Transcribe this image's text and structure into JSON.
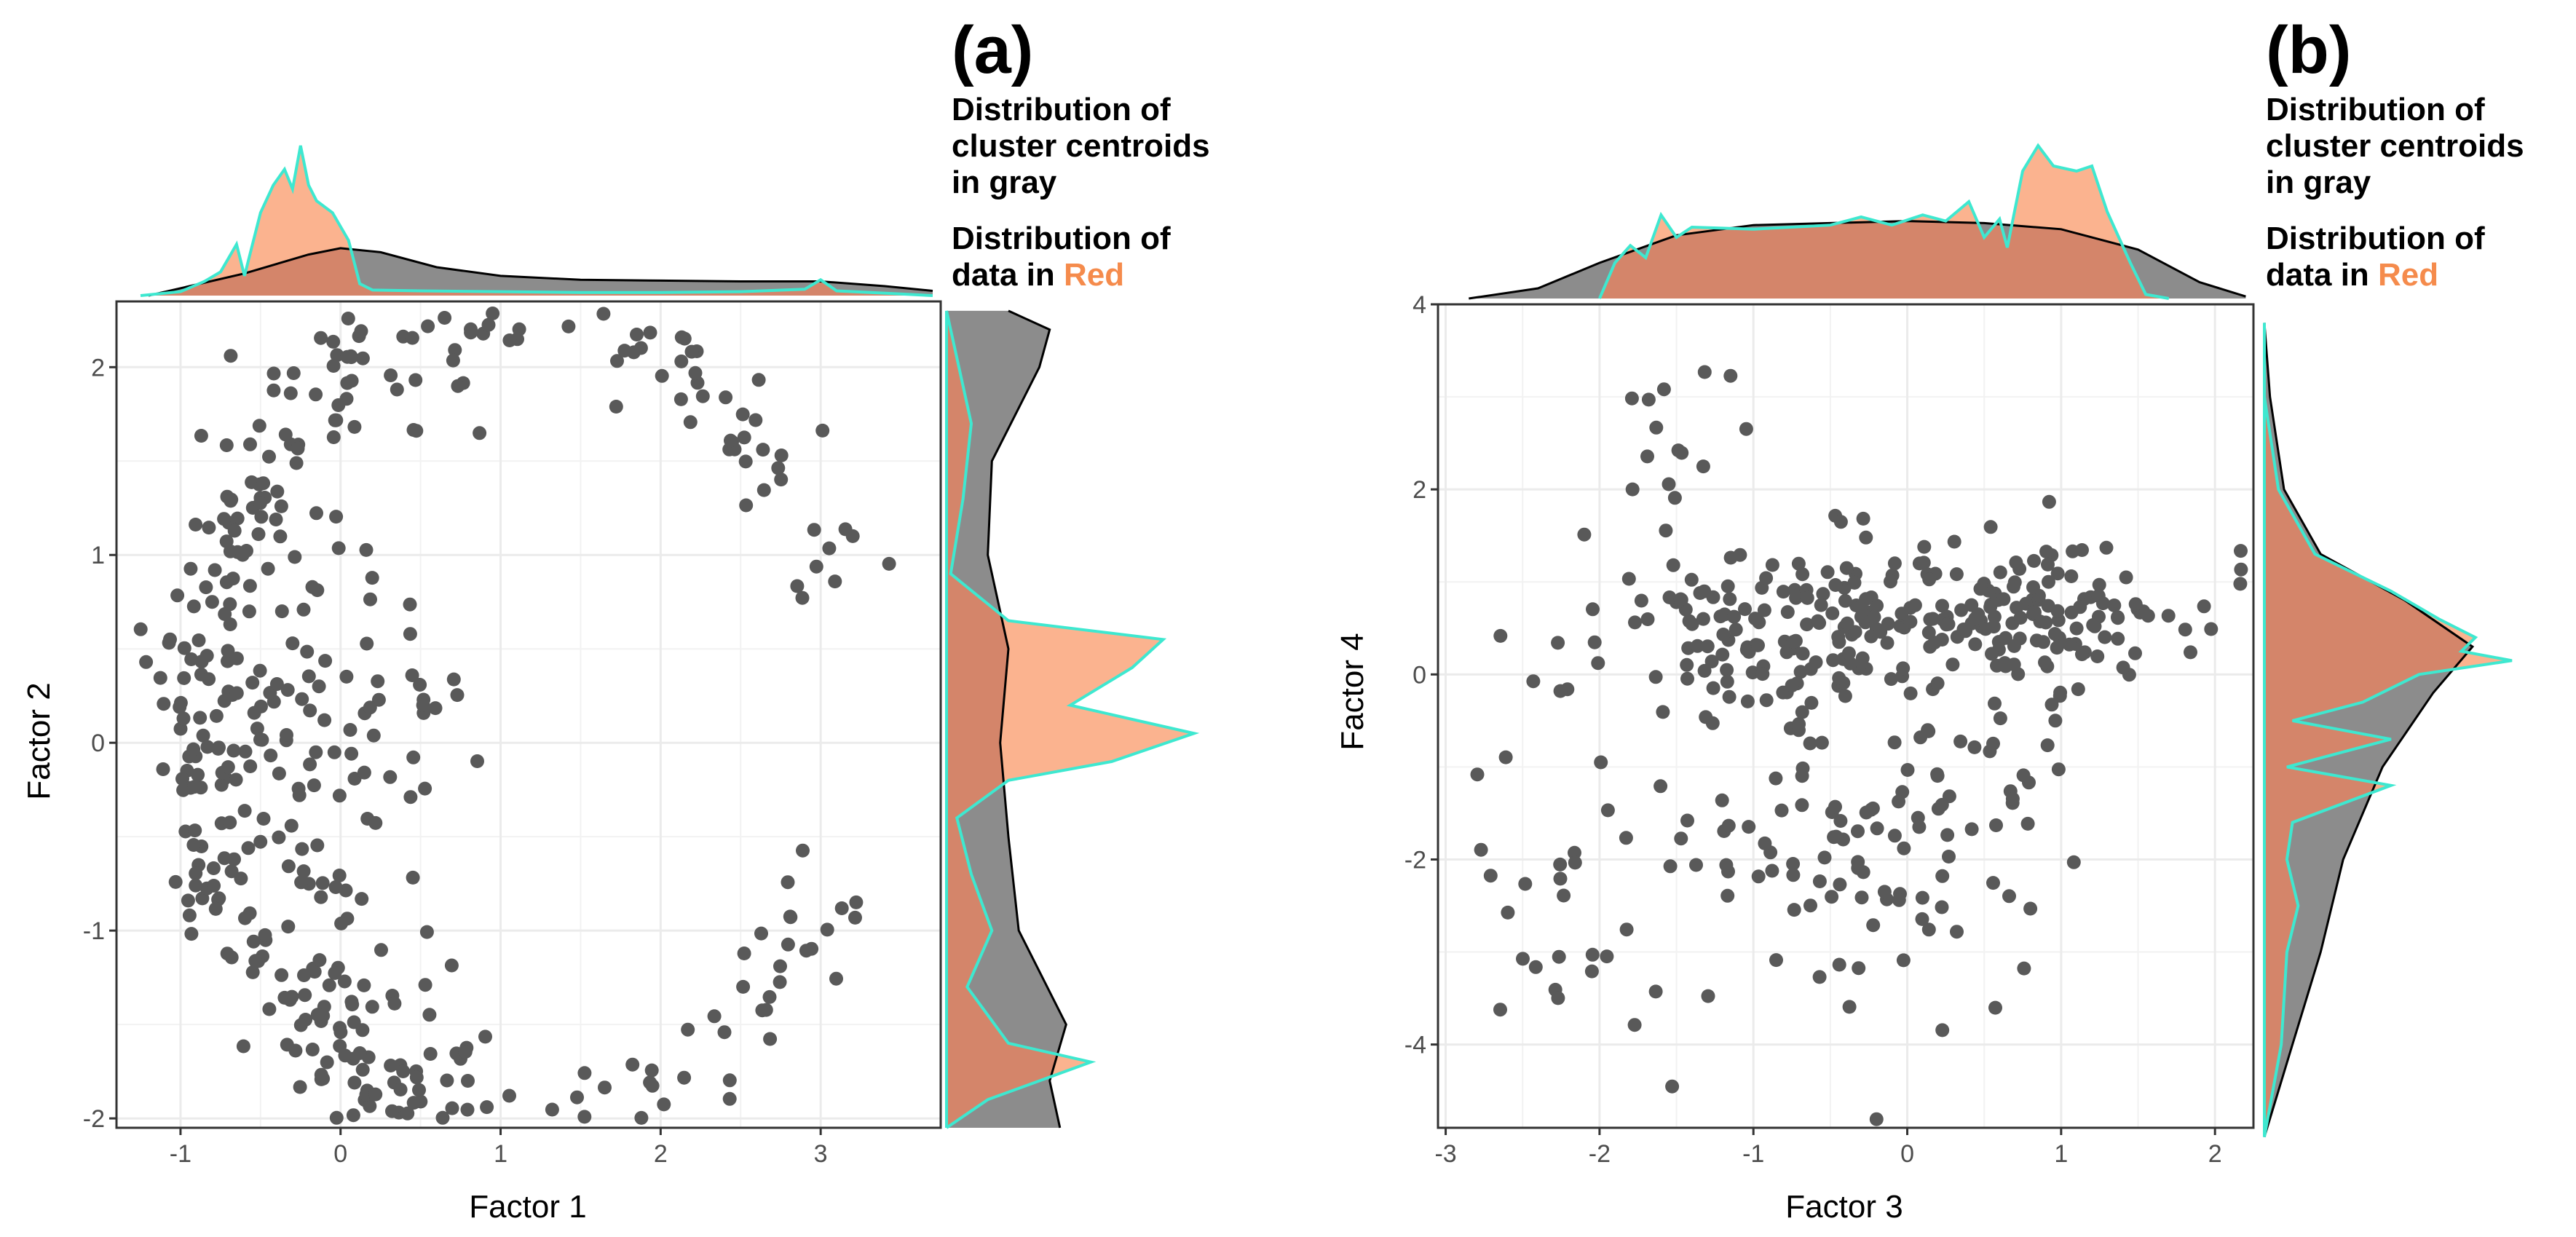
{
  "colors": {
    "point": "#595959",
    "centroid_density_fill": "#8c8c8c",
    "centroid_density_line": "#000000",
    "data_density_fill": "#fbb38f",
    "data_density_line": "#3ee8d0",
    "overlap_fill": "#d4856a",
    "overlap_line": "#6e2a12",
    "highlight": "#f58b4c",
    "grid": "#ebebeb"
  },
  "chart_data": [
    {
      "type": "scatter",
      "panel_label": "(a)",
      "legend": {
        "line1": "Distribution of",
        "line2": "cluster centroids",
        "line3": "in gray",
        "line4": "Distribution of",
        "line5_prefix": "data in ",
        "line5_highlight": "Red"
      },
      "xlabel": "Factor 1",
      "ylabel": "Factor 2",
      "xlim": [
        -1.4,
        3.75
      ],
      "ylim": [
        -2.05,
        2.35
      ],
      "xticks": [
        -1,
        0,
        1,
        2,
        3
      ],
      "yticks": [
        -2,
        -1,
        0,
        1,
        2
      ],
      "xtick_labels": [
        "-1",
        "0",
        "1",
        "2",
        "3"
      ],
      "ytick_labels": [
        "-2",
        "-1",
        "0",
        "1",
        "2"
      ],
      "grid": true,
      "point_generator": {
        "seed": 11,
        "clusters": [
          {
            "shape": "arc",
            "cx": 1.15,
            "cy": 0.1,
            "r": 2.05,
            "a0": 18,
            "a1": 342,
            "sd": 0.15,
            "n": 230
          },
          {
            "shape": "arc",
            "cx": 0.95,
            "cy": 0.3,
            "r": 1.85,
            "a0": 95,
            "a1": 265,
            "sd": 0.22,
            "n": 110
          },
          {
            "shape": "blob",
            "cx": -0.2,
            "cy": 0.0,
            "sx": 0.45,
            "sy": 0.55,
            "n": 110
          },
          {
            "shape": "arc",
            "cx": 1.2,
            "cy": 0.0,
            "r": 2.05,
            "a0": 230,
            "a1": 300,
            "sd": 0.12,
            "n": 60
          }
        ]
      },
      "marginal_top": {
        "domain": [
          -1.25,
          3.7
        ],
        "centroids": [
          [
            -1.2,
            0.0
          ],
          [
            -0.6,
            0.28
          ],
          [
            -0.2,
            0.52
          ],
          [
            0.0,
            0.6
          ],
          [
            0.25,
            0.55
          ],
          [
            0.6,
            0.36
          ],
          [
            1.0,
            0.25
          ],
          [
            1.5,
            0.2
          ],
          [
            2.0,
            0.19
          ],
          [
            2.5,
            0.18
          ],
          [
            3.0,
            0.18
          ],
          [
            3.4,
            0.12
          ],
          [
            3.7,
            0.06
          ]
        ],
        "data": [
          [
            -1.25,
            0.0
          ],
          [
            -1.0,
            0.05
          ],
          [
            -0.85,
            0.18
          ],
          [
            -0.75,
            0.3
          ],
          [
            -0.65,
            0.65
          ],
          [
            -0.6,
            0.25
          ],
          [
            -0.5,
            1.05
          ],
          [
            -0.42,
            1.4
          ],
          [
            -0.35,
            1.6
          ],
          [
            -0.3,
            1.35
          ],
          [
            -0.25,
            1.9
          ],
          [
            -0.2,
            1.4
          ],
          [
            -0.15,
            1.2
          ],
          [
            -0.05,
            1.05
          ],
          [
            0.05,
            0.7
          ],
          [
            0.12,
            0.15
          ],
          [
            0.2,
            0.07
          ],
          [
            0.5,
            0.06
          ],
          [
            1.0,
            0.05
          ],
          [
            1.5,
            0.04
          ],
          [
            2.0,
            0.04
          ],
          [
            2.5,
            0.05
          ],
          [
            2.9,
            0.08
          ],
          [
            3.0,
            0.2
          ],
          [
            3.1,
            0.06
          ],
          [
            3.5,
            0.02
          ],
          [
            3.7,
            0.0
          ]
        ]
      },
      "marginal_right": {
        "domain": [
          -2.05,
          2.3
        ],
        "centroids": [
          [
            -2.05,
            0.55
          ],
          [
            -1.8,
            0.5
          ],
          [
            -1.5,
            0.58
          ],
          [
            -1.0,
            0.35
          ],
          [
            -0.5,
            0.3
          ],
          [
            0.0,
            0.26
          ],
          [
            0.5,
            0.3
          ],
          [
            1.0,
            0.2
          ],
          [
            1.5,
            0.22
          ],
          [
            2.0,
            0.45
          ],
          [
            2.2,
            0.5
          ],
          [
            2.3,
            0.3
          ]
        ],
        "data": [
          [
            -2.05,
            0.0
          ],
          [
            -1.9,
            0.2
          ],
          [
            -1.7,
            0.7
          ],
          [
            -1.6,
            0.3
          ],
          [
            -1.3,
            0.1
          ],
          [
            -1.0,
            0.22
          ],
          [
            -0.7,
            0.12
          ],
          [
            -0.4,
            0.05
          ],
          [
            -0.2,
            0.3
          ],
          [
            -0.1,
            0.8
          ],
          [
            0.05,
            1.2
          ],
          [
            0.2,
            0.6
          ],
          [
            0.4,
            0.9
          ],
          [
            0.55,
            1.05
          ],
          [
            0.65,
            0.3
          ],
          [
            0.9,
            0.02
          ],
          [
            1.3,
            0.08
          ],
          [
            1.7,
            0.12
          ],
          [
            2.0,
            0.06
          ],
          [
            2.3,
            0.0
          ]
        ]
      }
    },
    {
      "type": "scatter",
      "panel_label": "(b)",
      "legend": {
        "line1": "Distribution of",
        "line2": "cluster centroids",
        "line3": "in gray",
        "line4": "Distribution of",
        "line5_prefix": "data in ",
        "line5_highlight": "Red"
      },
      "xlabel": "Factor 3",
      "ylabel": "Factor 4",
      "xlim": [
        -3.05,
        2.25
      ],
      "ylim": [
        -4.9,
        4.0
      ],
      "xticks": [
        -3,
        -2,
        -1,
        0,
        1,
        2
      ],
      "yticks": [
        -4,
        -2,
        0,
        2,
        4
      ],
      "xtick_labels": [
        "-3",
        "-2",
        "-1",
        "0",
        "1",
        "2"
      ],
      "ytick_labels": [
        "-4",
        "-2",
        "0",
        "2",
        "4"
      ],
      "grid": true,
      "point_generator": {
        "seed": 29,
        "clusters": [
          {
            "shape": "blob",
            "cx": -0.3,
            "cy": 0.55,
            "sx": 0.95,
            "sy": 0.45,
            "n": 220
          },
          {
            "shape": "blob",
            "cx": 0.9,
            "cy": 0.7,
            "sx": 0.5,
            "sy": 0.4,
            "n": 70
          },
          {
            "shape": "blob",
            "cx": -0.1,
            "cy": -1.6,
            "sx": 0.55,
            "sy": 1.05,
            "n": 110
          },
          {
            "shape": "blob",
            "cx": -2.1,
            "cy": -2.3,
            "sx": 0.45,
            "sy": 0.9,
            "n": 35
          },
          {
            "shape": "blob",
            "cx": -1.55,
            "cy": 2.6,
            "sx": 0.25,
            "sy": 0.6,
            "n": 14
          }
        ]
      },
      "marginal_top": {
        "domain": [
          -2.85,
          2.2
        ],
        "centroids": [
          [
            -2.85,
            0.0
          ],
          [
            -2.4,
            0.1
          ],
          [
            -2.0,
            0.35
          ],
          [
            -1.5,
            0.62
          ],
          [
            -1.0,
            0.72
          ],
          [
            -0.5,
            0.74
          ],
          [
            0.0,
            0.76
          ],
          [
            0.5,
            0.74
          ],
          [
            1.0,
            0.68
          ],
          [
            1.5,
            0.48
          ],
          [
            1.9,
            0.16
          ],
          [
            2.2,
            0.02
          ]
        ],
        "data": [
          [
            -2.0,
            0.0
          ],
          [
            -1.9,
            0.35
          ],
          [
            -1.8,
            0.52
          ],
          [
            -1.7,
            0.4
          ],
          [
            -1.6,
            0.82
          ],
          [
            -1.5,
            0.6
          ],
          [
            -1.4,
            0.7
          ],
          [
            -1.0,
            0.68
          ],
          [
            -0.5,
            0.72
          ],
          [
            -0.3,
            0.8
          ],
          [
            -0.1,
            0.72
          ],
          [
            0.1,
            0.82
          ],
          [
            0.25,
            0.76
          ],
          [
            0.4,
            0.95
          ],
          [
            0.5,
            0.6
          ],
          [
            0.6,
            0.78
          ],
          [
            0.65,
            0.5
          ],
          [
            0.75,
            1.25
          ],
          [
            0.85,
            1.5
          ],
          [
            0.95,
            1.3
          ],
          [
            1.1,
            1.25
          ],
          [
            1.2,
            1.3
          ],
          [
            1.3,
            0.85
          ],
          [
            1.45,
            0.35
          ],
          [
            1.55,
            0.04
          ],
          [
            1.7,
            0.0
          ]
        ]
      },
      "marginal_right": {
        "domain": [
          -5.0,
          3.8
        ],
        "centroids": [
          [
            -5.0,
            0.0
          ],
          [
            -4.5,
            0.05
          ],
          [
            -4.0,
            0.1
          ],
          [
            -3.0,
            0.2
          ],
          [
            -2.0,
            0.28
          ],
          [
            -1.0,
            0.42
          ],
          [
            -0.2,
            0.6
          ],
          [
            0.3,
            0.74
          ],
          [
            0.8,
            0.5
          ],
          [
            1.3,
            0.2
          ],
          [
            2.0,
            0.07
          ],
          [
            3.0,
            0.02
          ],
          [
            3.8,
            0.0
          ]
        ],
        "data": [
          [
            -5.0,
            0.0
          ],
          [
            -4.0,
            0.06
          ],
          [
            -3.0,
            0.08
          ],
          [
            -2.5,
            0.12
          ],
          [
            -2.0,
            0.08
          ],
          [
            -1.6,
            0.1
          ],
          [
            -1.2,
            0.45
          ],
          [
            -1.0,
            0.08
          ],
          [
            -0.7,
            0.45
          ],
          [
            -0.5,
            0.1
          ],
          [
            -0.3,
            0.35
          ],
          [
            0.0,
            0.55
          ],
          [
            0.15,
            0.88
          ],
          [
            0.25,
            0.7
          ],
          [
            0.4,
            0.75
          ],
          [
            0.6,
            0.62
          ],
          [
            0.9,
            0.45
          ],
          [
            1.3,
            0.18
          ],
          [
            2.0,
            0.05
          ],
          [
            3.0,
            0.0
          ]
        ]
      }
    }
  ]
}
